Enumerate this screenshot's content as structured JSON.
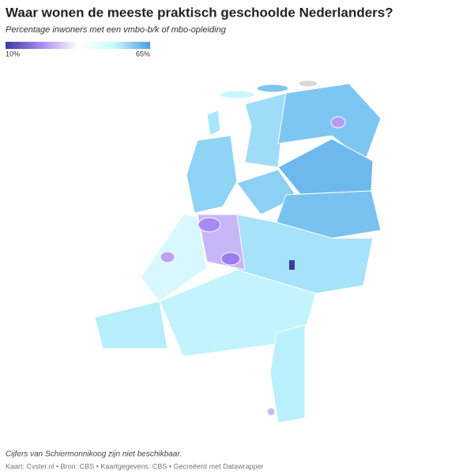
{
  "header": {
    "title": "Waar wonen de meeste praktisch geschoolde Nederlanders?",
    "subtitle": "Percentage inwoners met een vmbo-b/k of mbo-opleiding"
  },
  "legend": {
    "min": {
      "value": 10,
      "label": "10%"
    },
    "max": {
      "value": 65,
      "label": "65%"
    },
    "colors": [
      "#3b3ba3",
      "#a98af5",
      "#ffffff",
      "#c8fbff",
      "#4a9fe4"
    ]
  },
  "footer": {
    "note": "Cijfers van Schiermonnikoog zijn niet beschikbaar.",
    "credits": "Kaart: Cvster.nl • Bron: CBS • Kaartgegevens: CBS • Gecreëerd met Datawrapper"
  }
}
